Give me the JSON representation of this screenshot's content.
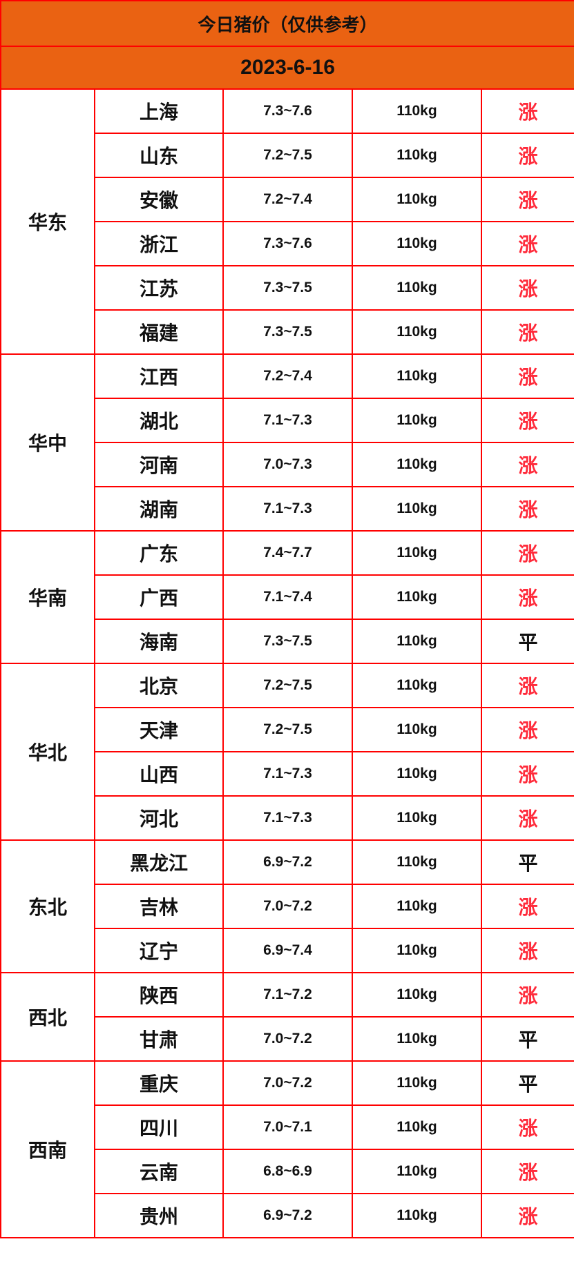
{
  "title": "今日猪价（仅供参考）",
  "date": "2023-6-16",
  "colors": {
    "header_bg": "#ea6212",
    "border": "#ff0000",
    "up": "#ff2a3a",
    "flat": "#111111"
  },
  "regions": [
    {
      "name": "华东",
      "rows": [
        {
          "province": "上海",
          "price": "7.3~7.6",
          "weight": "110kg",
          "trend": "涨"
        },
        {
          "province": "山东",
          "price": "7.2~7.5",
          "weight": "110kg",
          "trend": "涨"
        },
        {
          "province": "安徽",
          "price": "7.2~7.4",
          "weight": "110kg",
          "trend": "涨"
        },
        {
          "province": "浙江",
          "price": "7.3~7.6",
          "weight": "110kg",
          "trend": "涨"
        },
        {
          "province": "江苏",
          "price": "7.3~7.5",
          "weight": "110kg",
          "trend": "涨"
        },
        {
          "province": "福建",
          "price": "7.3~7.5",
          "weight": "110kg",
          "trend": "涨"
        }
      ]
    },
    {
      "name": "华中",
      "rows": [
        {
          "province": "江西",
          "price": "7.2~7.4",
          "weight": "110kg",
          "trend": "涨"
        },
        {
          "province": "湖北",
          "price": "7.1~7.3",
          "weight": "110kg",
          "trend": "涨"
        },
        {
          "province": "河南",
          "price": "7.0~7.3",
          "weight": "110kg",
          "trend": "涨"
        },
        {
          "province": "湖南",
          "price": "7.1~7.3",
          "weight": "110kg",
          "trend": "涨"
        }
      ]
    },
    {
      "name": "华南",
      "rows": [
        {
          "province": "广东",
          "price": "7.4~7.7",
          "weight": "110kg",
          "trend": "涨"
        },
        {
          "province": "广西",
          "price": "7.1~7.4",
          "weight": "110kg",
          "trend": "涨"
        },
        {
          "province": "海南",
          "price": "7.3~7.5",
          "weight": "110kg",
          "trend": "平"
        }
      ]
    },
    {
      "name": "华北",
      "rows": [
        {
          "province": "北京",
          "price": "7.2~7.5",
          "weight": "110kg",
          "trend": "涨"
        },
        {
          "province": "天津",
          "price": "7.2~7.5",
          "weight": "110kg",
          "trend": "涨"
        },
        {
          "province": "山西",
          "price": "7.1~7.3",
          "weight": "110kg",
          "trend": "涨"
        },
        {
          "province": "河北",
          "price": "7.1~7.3",
          "weight": "110kg",
          "trend": "涨"
        }
      ]
    },
    {
      "name": "东北",
      "rows": [
        {
          "province": "黑龙江",
          "price": "6.9~7.2",
          "weight": "110kg",
          "trend": "平"
        },
        {
          "province": "吉林",
          "price": "7.0~7.2",
          "weight": "110kg",
          "trend": "涨"
        },
        {
          "province": "辽宁",
          "price": "6.9~7.4",
          "weight": "110kg",
          "trend": "涨"
        }
      ]
    },
    {
      "name": "西北",
      "rows": [
        {
          "province": "陕西",
          "price": "7.1~7.2",
          "weight": "110kg",
          "trend": "涨"
        },
        {
          "province": "甘肃",
          "price": "7.0~7.2",
          "weight": "110kg",
          "trend": "平"
        }
      ]
    },
    {
      "name": "西南",
      "rows": [
        {
          "province": "重庆",
          "price": "7.0~7.2",
          "weight": "110kg",
          "trend": "平"
        },
        {
          "province": "四川",
          "price": "7.0~7.1",
          "weight": "110kg",
          "trend": "涨"
        },
        {
          "province": "云南",
          "price": "6.8~6.9",
          "weight": "110kg",
          "trend": "涨"
        },
        {
          "province": "贵州",
          "price": "6.9~7.2",
          "weight": "110kg",
          "trend": "涨"
        }
      ]
    }
  ]
}
